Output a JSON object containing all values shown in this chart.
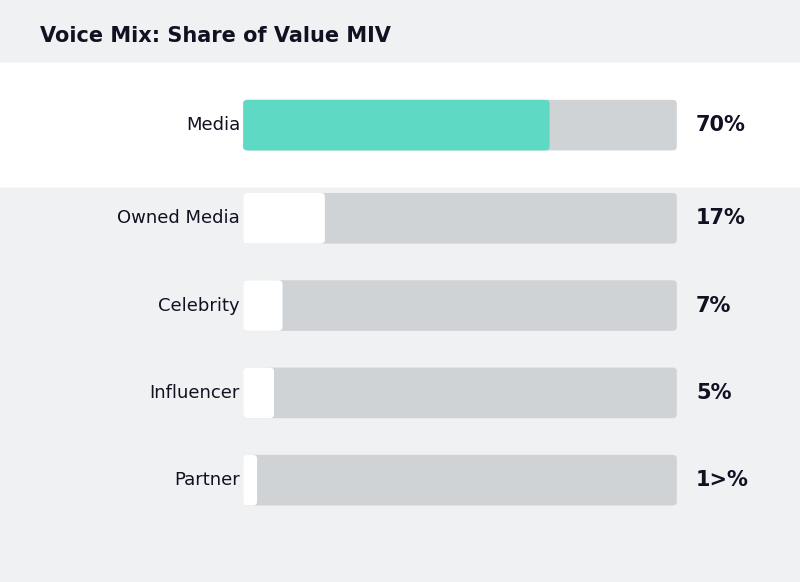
{
  "title": "Voice Mix: Share of Value MIV",
  "background_color": "#f0f1f3",
  "card_color": "#ffffff",
  "categories": [
    "Media",
    "Owned Media",
    "Celebrity",
    "Influencer",
    "Partner"
  ],
  "values": [
    70,
    17,
    7,
    5,
    1
  ],
  "labels": [
    "70%",
    "17%",
    "7%",
    "5%",
    "1>%"
  ],
  "bar_bg_color": "#d0d3d6",
  "value_fill_colors": [
    "#5dd9c4",
    "#ffffff",
    "#ffffff",
    "#ffffff",
    "#ffffff"
  ],
  "title_fontsize": 15,
  "label_fontsize": 13,
  "value_fontsize": 15,
  "fig_width": 8.0,
  "fig_height": 5.82
}
